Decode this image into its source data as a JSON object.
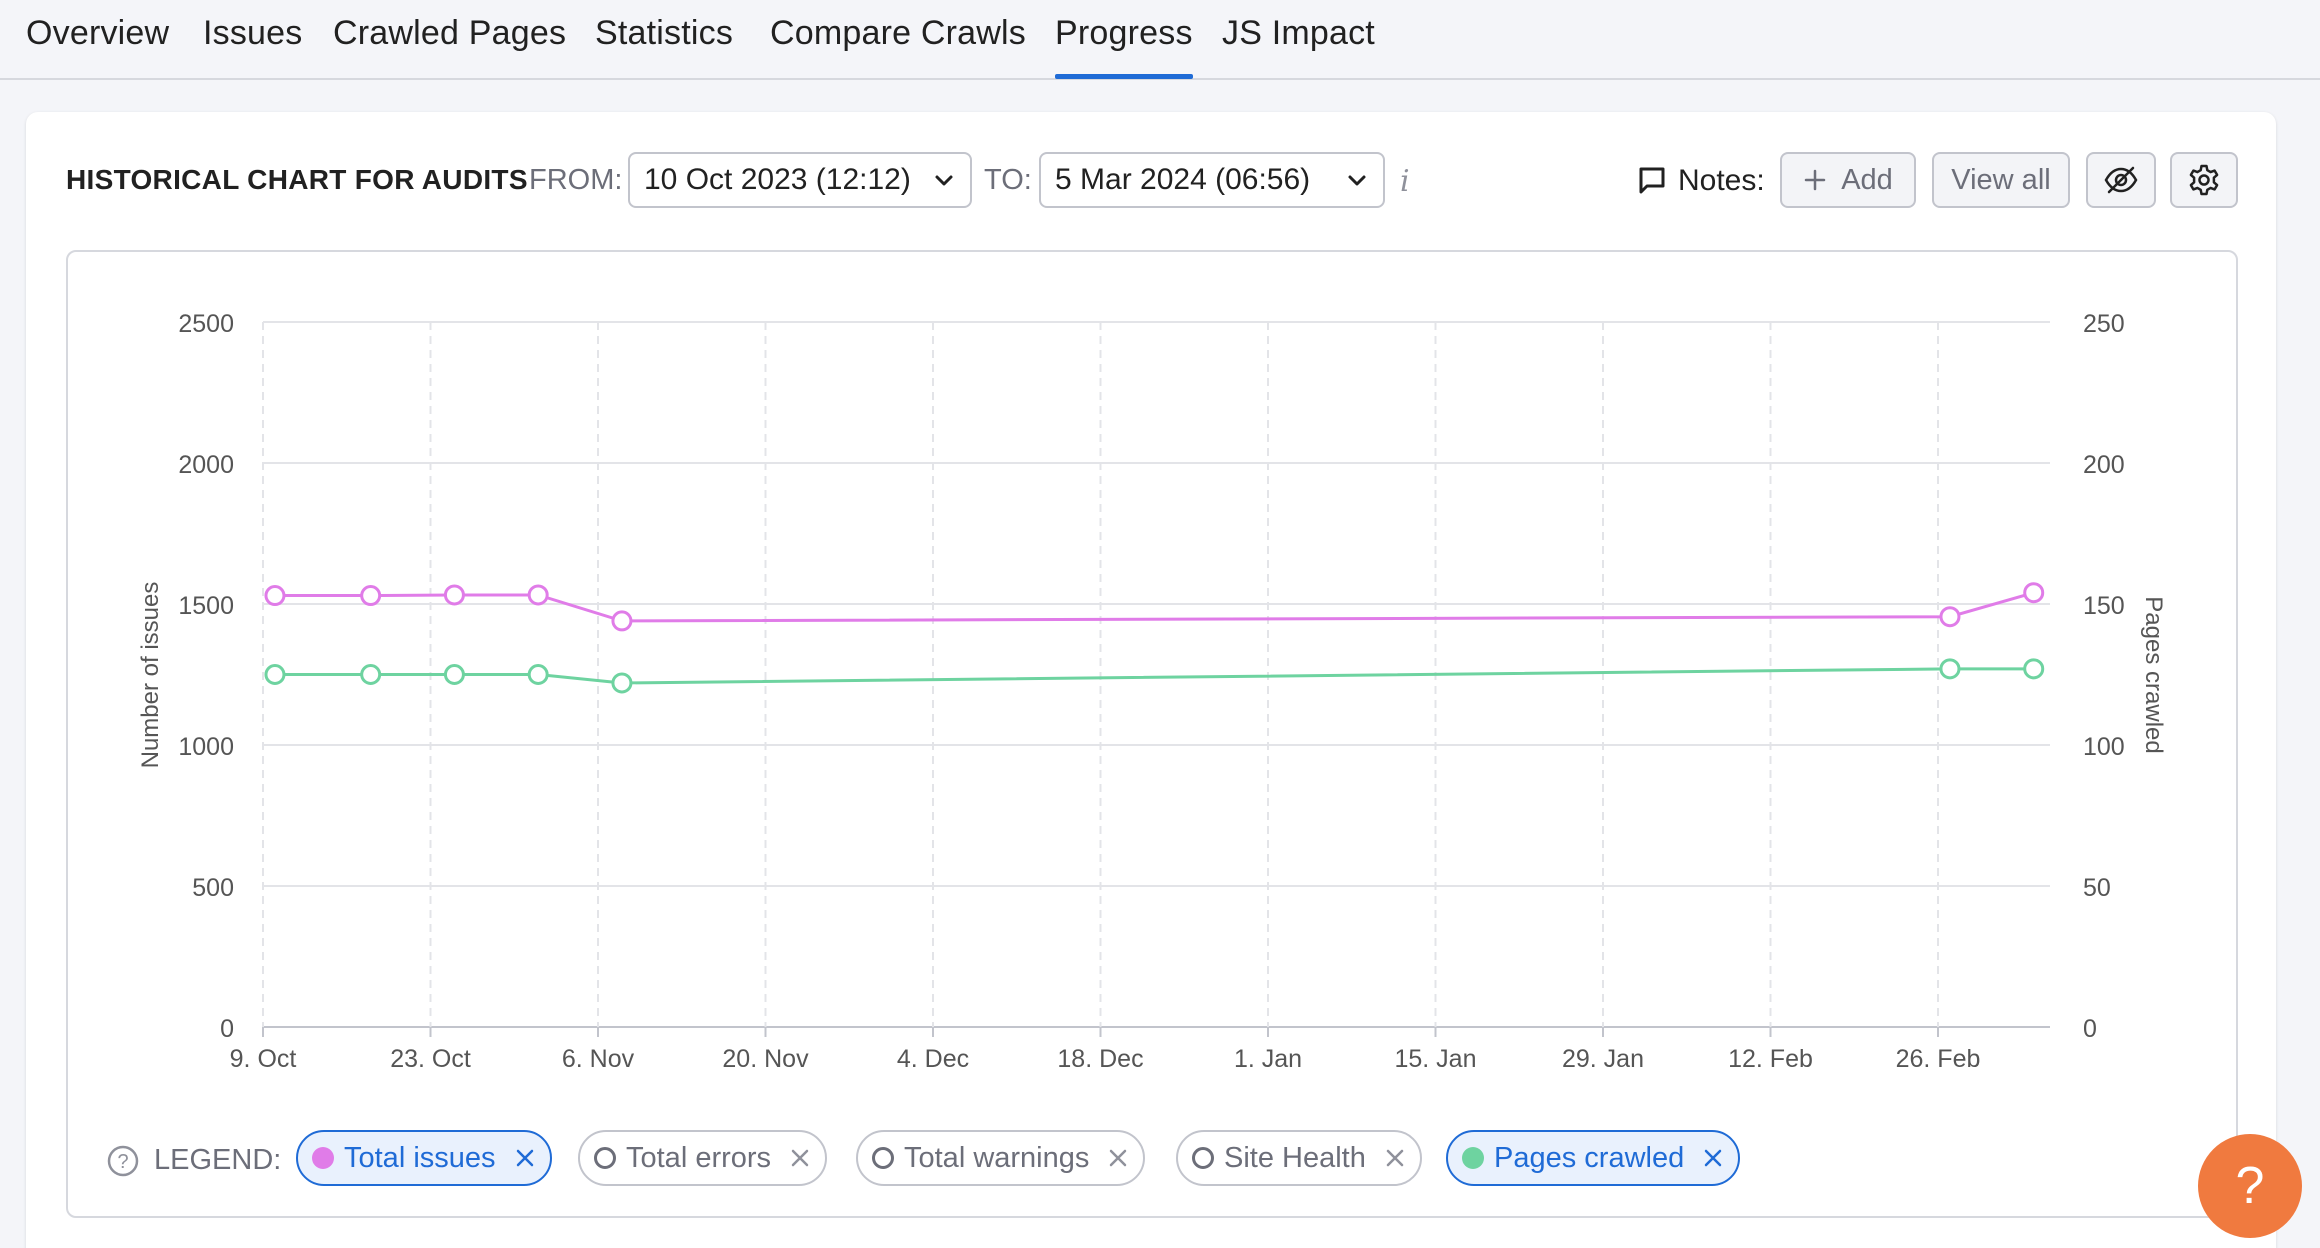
{
  "tabs": [
    {
      "label": "Overview"
    },
    {
      "label": "Issues"
    },
    {
      "label": "Crawled Pages"
    },
    {
      "label": "Statistics"
    },
    {
      "label": "Compare Crawls"
    },
    {
      "label": "Progress",
      "active": true
    },
    {
      "label": "JS Impact"
    }
  ],
  "header": {
    "title": "HISTORICAL CHART FOR AUDITS",
    "from_label": "FROM:",
    "from_value": "10 Oct 2023 (12:12)",
    "to_label": "TO:",
    "to_value": "5 Mar 2024 (06:56)",
    "info_icon": "i",
    "notes_label": "Notes:",
    "add_label": "Add",
    "view_all_label": "View all"
  },
  "legend": {
    "label": "LEGEND:",
    "items": [
      {
        "label": "Total issues",
        "active": true,
        "color": "#e07ce8"
      },
      {
        "label": "Total errors",
        "active": false
      },
      {
        "label": "Total warnings",
        "active": false
      },
      {
        "label": "Site Health",
        "active": false
      },
      {
        "label": "Pages crawled",
        "active": true,
        "color": "#6ed3a0"
      }
    ]
  },
  "help_button": "?",
  "chart_data": {
    "type": "line",
    "ylabel_left": "Number of issues",
    "ylabel_right": "Pages crawled",
    "x_ticks": [
      "9. Oct",
      "23. Oct",
      "6. Nov",
      "20. Nov",
      "4. Dec",
      "18. Dec",
      "1. Jan",
      "15. Jan",
      "29. Jan",
      "12. Feb",
      "26. Feb"
    ],
    "y_left_ticks": [
      "2500",
      "2000",
      "1500",
      "1000",
      "500",
      "0"
    ],
    "y_right_ticks": [
      "250",
      "200",
      "150",
      "100",
      "50",
      "0"
    ],
    "ylim_left": [
      0,
      2500
    ],
    "ylim_right": [
      0,
      250
    ],
    "grid": true,
    "x": [
      "2023-10-10",
      "2023-10-18",
      "2023-10-25",
      "2023-11-01",
      "2023-11-08",
      "2024-02-27",
      "2024-03-05"
    ],
    "series": [
      {
        "name": "Total issues",
        "axis": "left",
        "color": "#e07ce8",
        "values": [
          1530,
          1530,
          1532,
          1532,
          1440,
          1455,
          1540
        ]
      },
      {
        "name": "Pages crawled",
        "axis": "right",
        "color": "#6ed3a0",
        "values": [
          125,
          125,
          125,
          125,
          122,
          127,
          127
        ]
      }
    ]
  }
}
